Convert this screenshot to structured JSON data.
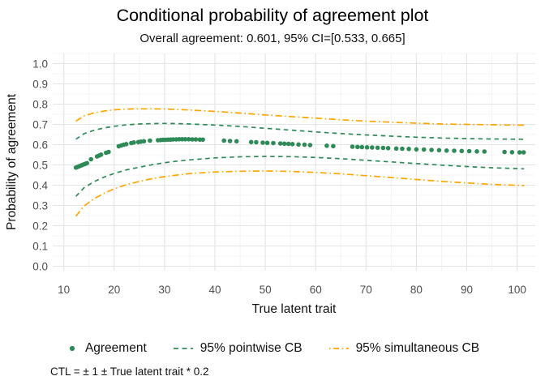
{
  "chart_data": {
    "type": "scatter",
    "title": "Conditional probability of agreement plot",
    "subtitle": "Overall agreement: 0.601, 95% CI=[0.533, 0.665]",
    "xlabel": "True latent trait",
    "ylabel": "Probability of agreement",
    "caption": "CTL = ± 1 ± True latent trait * 0.2",
    "xlim": [
      7.8,
      103.6
    ],
    "ylim": [
      -0.022,
      1.05
    ],
    "x_ticks": [
      10,
      20,
      30,
      40,
      50,
      60,
      70,
      80,
      90,
      100
    ],
    "x_tick_labels": [
      "10",
      "20",
      "30",
      "40",
      "50",
      "60",
      "70",
      "80",
      "90",
      "100"
    ],
    "y_ticks": [
      0.0,
      0.1,
      0.2,
      0.3,
      0.4,
      0.5,
      0.6,
      0.7,
      0.8,
      0.9,
      1.0
    ],
    "y_tick_labels": [
      "0.0",
      "0.1",
      "0.2",
      "0.3",
      "0.4",
      "0.5",
      "0.6",
      "0.7",
      "0.8",
      "0.9",
      "1.0"
    ],
    "grid": {
      "show": true,
      "major_color": "#e4e4e4",
      "minor_color": "#f1f1f1"
    },
    "colors": {
      "agreement_green": "#2E8B57",
      "band_orange": "#FFA500",
      "tick_text": "#4d4d4d",
      "title_text": "#000000"
    },
    "legend": {
      "position": "bottom",
      "items": [
        {
          "label": "Agreement",
          "type": "point",
          "color": "#2E8B57"
        },
        {
          "label": "95% pointwise CB",
          "type": "dashed-line",
          "color": "#2E8B57"
        },
        {
          "label": "95% simultaneous CB",
          "type": "dashdot-line",
          "color": "#FFA500"
        }
      ]
    },
    "series": [
      {
        "name": "Agreement",
        "role": "points",
        "color": "#2E8B57",
        "points": [
          [
            12.4,
            0.487
          ],
          [
            12.6,
            0.489
          ],
          [
            12.9,
            0.492
          ],
          [
            13.1,
            0.494
          ],
          [
            13.4,
            0.497
          ],
          [
            13.7,
            0.5
          ],
          [
            14.0,
            0.503
          ],
          [
            14.3,
            0.506
          ],
          [
            14.6,
            0.509
          ],
          [
            15.4,
            0.528
          ],
          [
            16.6,
            0.542
          ],
          [
            17.0,
            0.546
          ],
          [
            17.4,
            0.551
          ],
          [
            18.4,
            0.56
          ],
          [
            18.9,
            0.564
          ],
          [
            20.9,
            0.592
          ],
          [
            21.4,
            0.596
          ],
          [
            21.9,
            0.6
          ],
          [
            22.4,
            0.603
          ],
          [
            23.4,
            0.608
          ],
          [
            23.9,
            0.611
          ],
          [
            24.8,
            0.613
          ],
          [
            25.3,
            0.615
          ],
          [
            25.9,
            0.617
          ],
          [
            27.1,
            0.62
          ],
          [
            28.7,
            0.622
          ],
          [
            29.2,
            0.623
          ],
          [
            29.7,
            0.624
          ],
          [
            30.2,
            0.624
          ],
          [
            30.7,
            0.625
          ],
          [
            31.2,
            0.625
          ],
          [
            31.7,
            0.626
          ],
          [
            32.3,
            0.626
          ],
          [
            32.9,
            0.627
          ],
          [
            33.5,
            0.627
          ],
          [
            34.1,
            0.627
          ],
          [
            34.8,
            0.627
          ],
          [
            35.5,
            0.626
          ],
          [
            36.2,
            0.626
          ],
          [
            37.0,
            0.625
          ],
          [
            37.6,
            0.625
          ],
          [
            41.8,
            0.62
          ],
          [
            43.0,
            0.618
          ],
          [
            44.3,
            0.617
          ],
          [
            47.2,
            0.613
          ],
          [
            48.2,
            0.612
          ],
          [
            49.5,
            0.61
          ],
          [
            50.4,
            0.609
          ],
          [
            51.6,
            0.608
          ],
          [
            53.0,
            0.606
          ],
          [
            53.8,
            0.605
          ],
          [
            54.6,
            0.604
          ],
          [
            55.4,
            0.603
          ],
          [
            56.6,
            0.601
          ],
          [
            57.8,
            0.6
          ],
          [
            58.9,
            0.598
          ],
          [
            62.2,
            0.595
          ],
          [
            63.5,
            0.593
          ],
          [
            67.3,
            0.59
          ],
          [
            68.3,
            0.589
          ],
          [
            69.2,
            0.588
          ],
          [
            70.2,
            0.587
          ],
          [
            71.2,
            0.586
          ],
          [
            72.3,
            0.585
          ],
          [
            73.4,
            0.584
          ],
          [
            74.4,
            0.583
          ],
          [
            76.0,
            0.581
          ],
          [
            77.2,
            0.58
          ],
          [
            78.5,
            0.579
          ],
          [
            80.0,
            0.577
          ],
          [
            81.5,
            0.576
          ],
          [
            83.0,
            0.574
          ],
          [
            84.5,
            0.573
          ],
          [
            86.0,
            0.571
          ],
          [
            87.5,
            0.57
          ],
          [
            89.0,
            0.569
          ],
          [
            90.5,
            0.568
          ],
          [
            92.0,
            0.567
          ],
          [
            93.5,
            0.566
          ],
          [
            97.5,
            0.564
          ],
          [
            99.0,
            0.563
          ],
          [
            100.5,
            0.562
          ],
          [
            101.3,
            0.562
          ]
        ]
      },
      {
        "name": "95% pointwise CB upper",
        "role": "band-line",
        "style": "dashed",
        "color": "#2E8B57",
        "points": [
          [
            12.4,
            0.627
          ],
          [
            14,
            0.654
          ],
          [
            16,
            0.671
          ],
          [
            18,
            0.683
          ],
          [
            20,
            0.691
          ],
          [
            22.5,
            0.698
          ],
          [
            25,
            0.702
          ],
          [
            27.5,
            0.704
          ],
          [
            30,
            0.705
          ],
          [
            32.5,
            0.704
          ],
          [
            35,
            0.702
          ],
          [
            40,
            0.697
          ],
          [
            45,
            0.69
          ],
          [
            50,
            0.681
          ],
          [
            55,
            0.672
          ],
          [
            60,
            0.663
          ],
          [
            65,
            0.655
          ],
          [
            70,
            0.648
          ],
          [
            75,
            0.642
          ],
          [
            80,
            0.637
          ],
          [
            85,
            0.633
          ],
          [
            90,
            0.63
          ],
          [
            95,
            0.628
          ],
          [
            101.4,
            0.627
          ]
        ]
      },
      {
        "name": "95% pointwise CB lower",
        "role": "band-line",
        "style": "dashed",
        "color": "#2E8B57",
        "points": [
          [
            12.4,
            0.345
          ],
          [
            14,
            0.387
          ],
          [
            16,
            0.417
          ],
          [
            18,
            0.44
          ],
          [
            20,
            0.458
          ],
          [
            22.5,
            0.476
          ],
          [
            25,
            0.489
          ],
          [
            27.5,
            0.501
          ],
          [
            30,
            0.511
          ],
          [
            32.5,
            0.519
          ],
          [
            35,
            0.525
          ],
          [
            40,
            0.535
          ],
          [
            45,
            0.54
          ],
          [
            50,
            0.542
          ],
          [
            55,
            0.541
          ],
          [
            60,
            0.537
          ],
          [
            65,
            0.531
          ],
          [
            70,
            0.523
          ],
          [
            75,
            0.515
          ],
          [
            80,
            0.507
          ],
          [
            85,
            0.499
          ],
          [
            90,
            0.492
          ],
          [
            95,
            0.486
          ],
          [
            101.4,
            0.481
          ]
        ]
      },
      {
        "name": "95% simultaneous CB upper",
        "role": "band-line",
        "style": "dashdot",
        "color": "#FFA500",
        "points": [
          [
            12.4,
            0.716
          ],
          [
            14,
            0.742
          ],
          [
            16,
            0.757
          ],
          [
            18,
            0.766
          ],
          [
            20,
            0.772
          ],
          [
            22.5,
            0.776
          ],
          [
            25,
            0.777
          ],
          [
            27.5,
            0.777
          ],
          [
            30,
            0.776
          ],
          [
            32.5,
            0.774
          ],
          [
            35,
            0.771
          ],
          [
            40,
            0.764
          ],
          [
            45,
            0.756
          ],
          [
            50,
            0.747
          ],
          [
            55,
            0.739
          ],
          [
            60,
            0.731
          ],
          [
            65,
            0.723
          ],
          [
            70,
            0.716
          ],
          [
            75,
            0.711
          ],
          [
            80,
            0.706
          ],
          [
            85,
            0.702
          ],
          [
            90,
            0.7
          ],
          [
            95,
            0.698
          ],
          [
            101.4,
            0.696
          ]
        ]
      },
      {
        "name": "95% simultaneous CB lower",
        "role": "band-line",
        "style": "dashdot",
        "color": "#FFA500",
        "points": [
          [
            12.4,
            0.247
          ],
          [
            14,
            0.297
          ],
          [
            16,
            0.333
          ],
          [
            18,
            0.36
          ],
          [
            20,
            0.382
          ],
          [
            22.5,
            0.403
          ],
          [
            25,
            0.419
          ],
          [
            27.5,
            0.432
          ],
          [
            30,
            0.442
          ],
          [
            32.5,
            0.45
          ],
          [
            35,
            0.457
          ],
          [
            40,
            0.465
          ],
          [
            45,
            0.469
          ],
          [
            50,
            0.47
          ],
          [
            55,
            0.468
          ],
          [
            60,
            0.463
          ],
          [
            65,
            0.456
          ],
          [
            70,
            0.447
          ],
          [
            75,
            0.438
          ],
          [
            80,
            0.428
          ],
          [
            85,
            0.419
          ],
          [
            90,
            0.411
          ],
          [
            95,
            0.404
          ],
          [
            101.4,
            0.398
          ]
        ]
      }
    ]
  }
}
